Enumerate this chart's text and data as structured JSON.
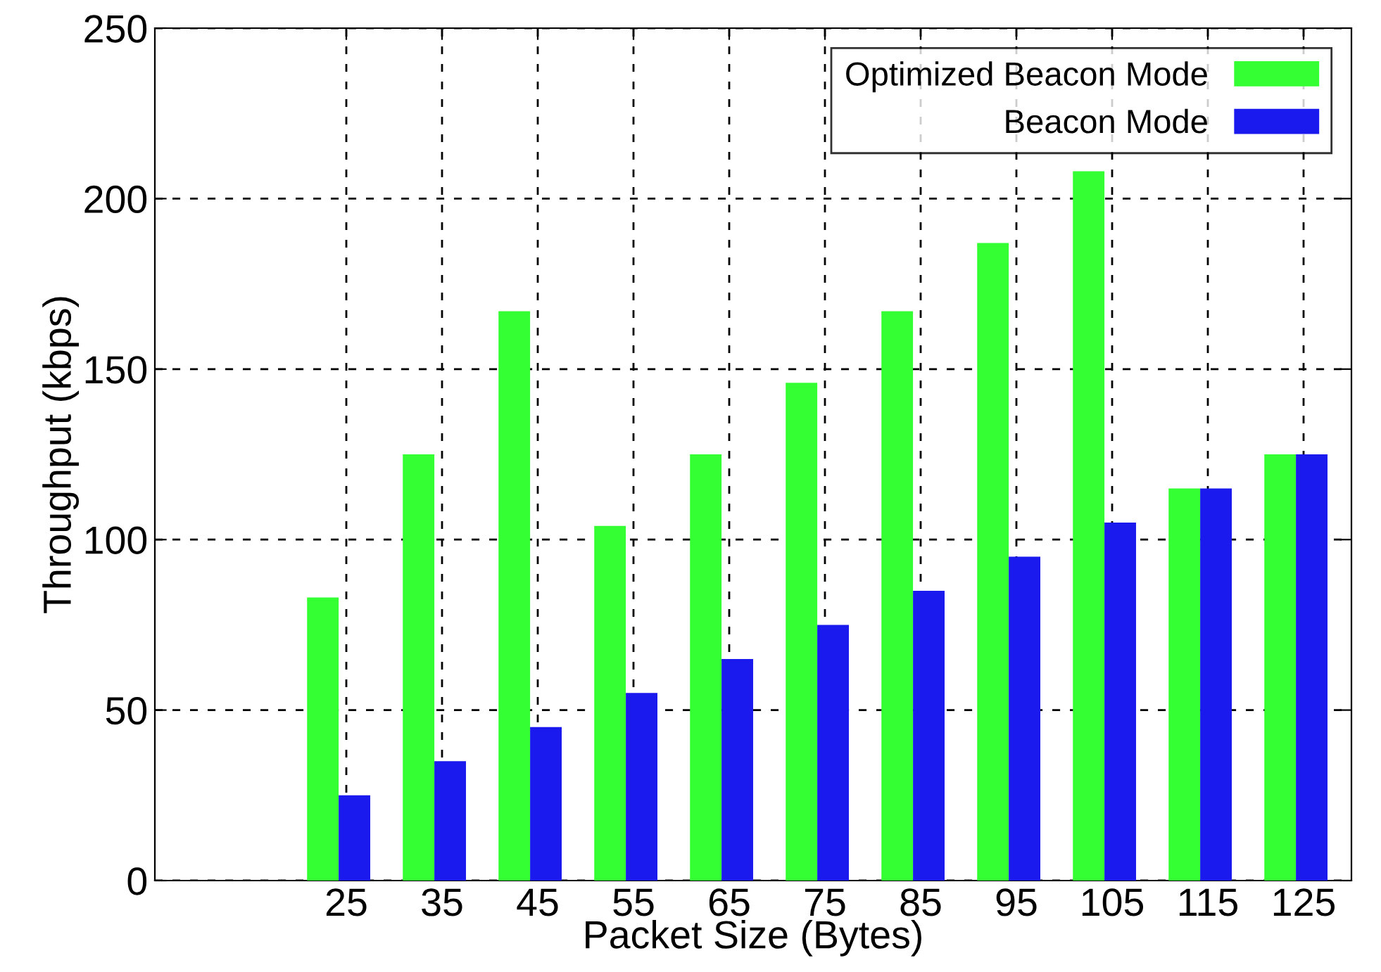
{
  "chart_data": {
    "type": "bar",
    "xlabel": "Packet Size (Bytes)",
    "ylabel": "Throughput (kbps)",
    "x": [
      25,
      35,
      45,
      55,
      65,
      75,
      85,
      95,
      105,
      115,
      125
    ],
    "xlim": [
      5,
      130
    ],
    "xticks": [
      25,
      35,
      45,
      55,
      65,
      75,
      85,
      95,
      105,
      115,
      125
    ],
    "ylim": [
      0,
      250
    ],
    "yticks": [
      0,
      50,
      100,
      150,
      200,
      250
    ],
    "series": [
      {
        "name": "Optimized Beacon Mode",
        "color": "#33ff33",
        "values": [
          83,
          125,
          167,
          104,
          125,
          146,
          167,
          187,
          208,
          115,
          125
        ]
      },
      {
        "name": "Beacon Mode",
        "color": "#1a1aee",
        "values": [
          25,
          35,
          45,
          55,
          65,
          75,
          85,
          95,
          105,
          115,
          125
        ]
      }
    ],
    "grid": true,
    "legend": "top right"
  }
}
